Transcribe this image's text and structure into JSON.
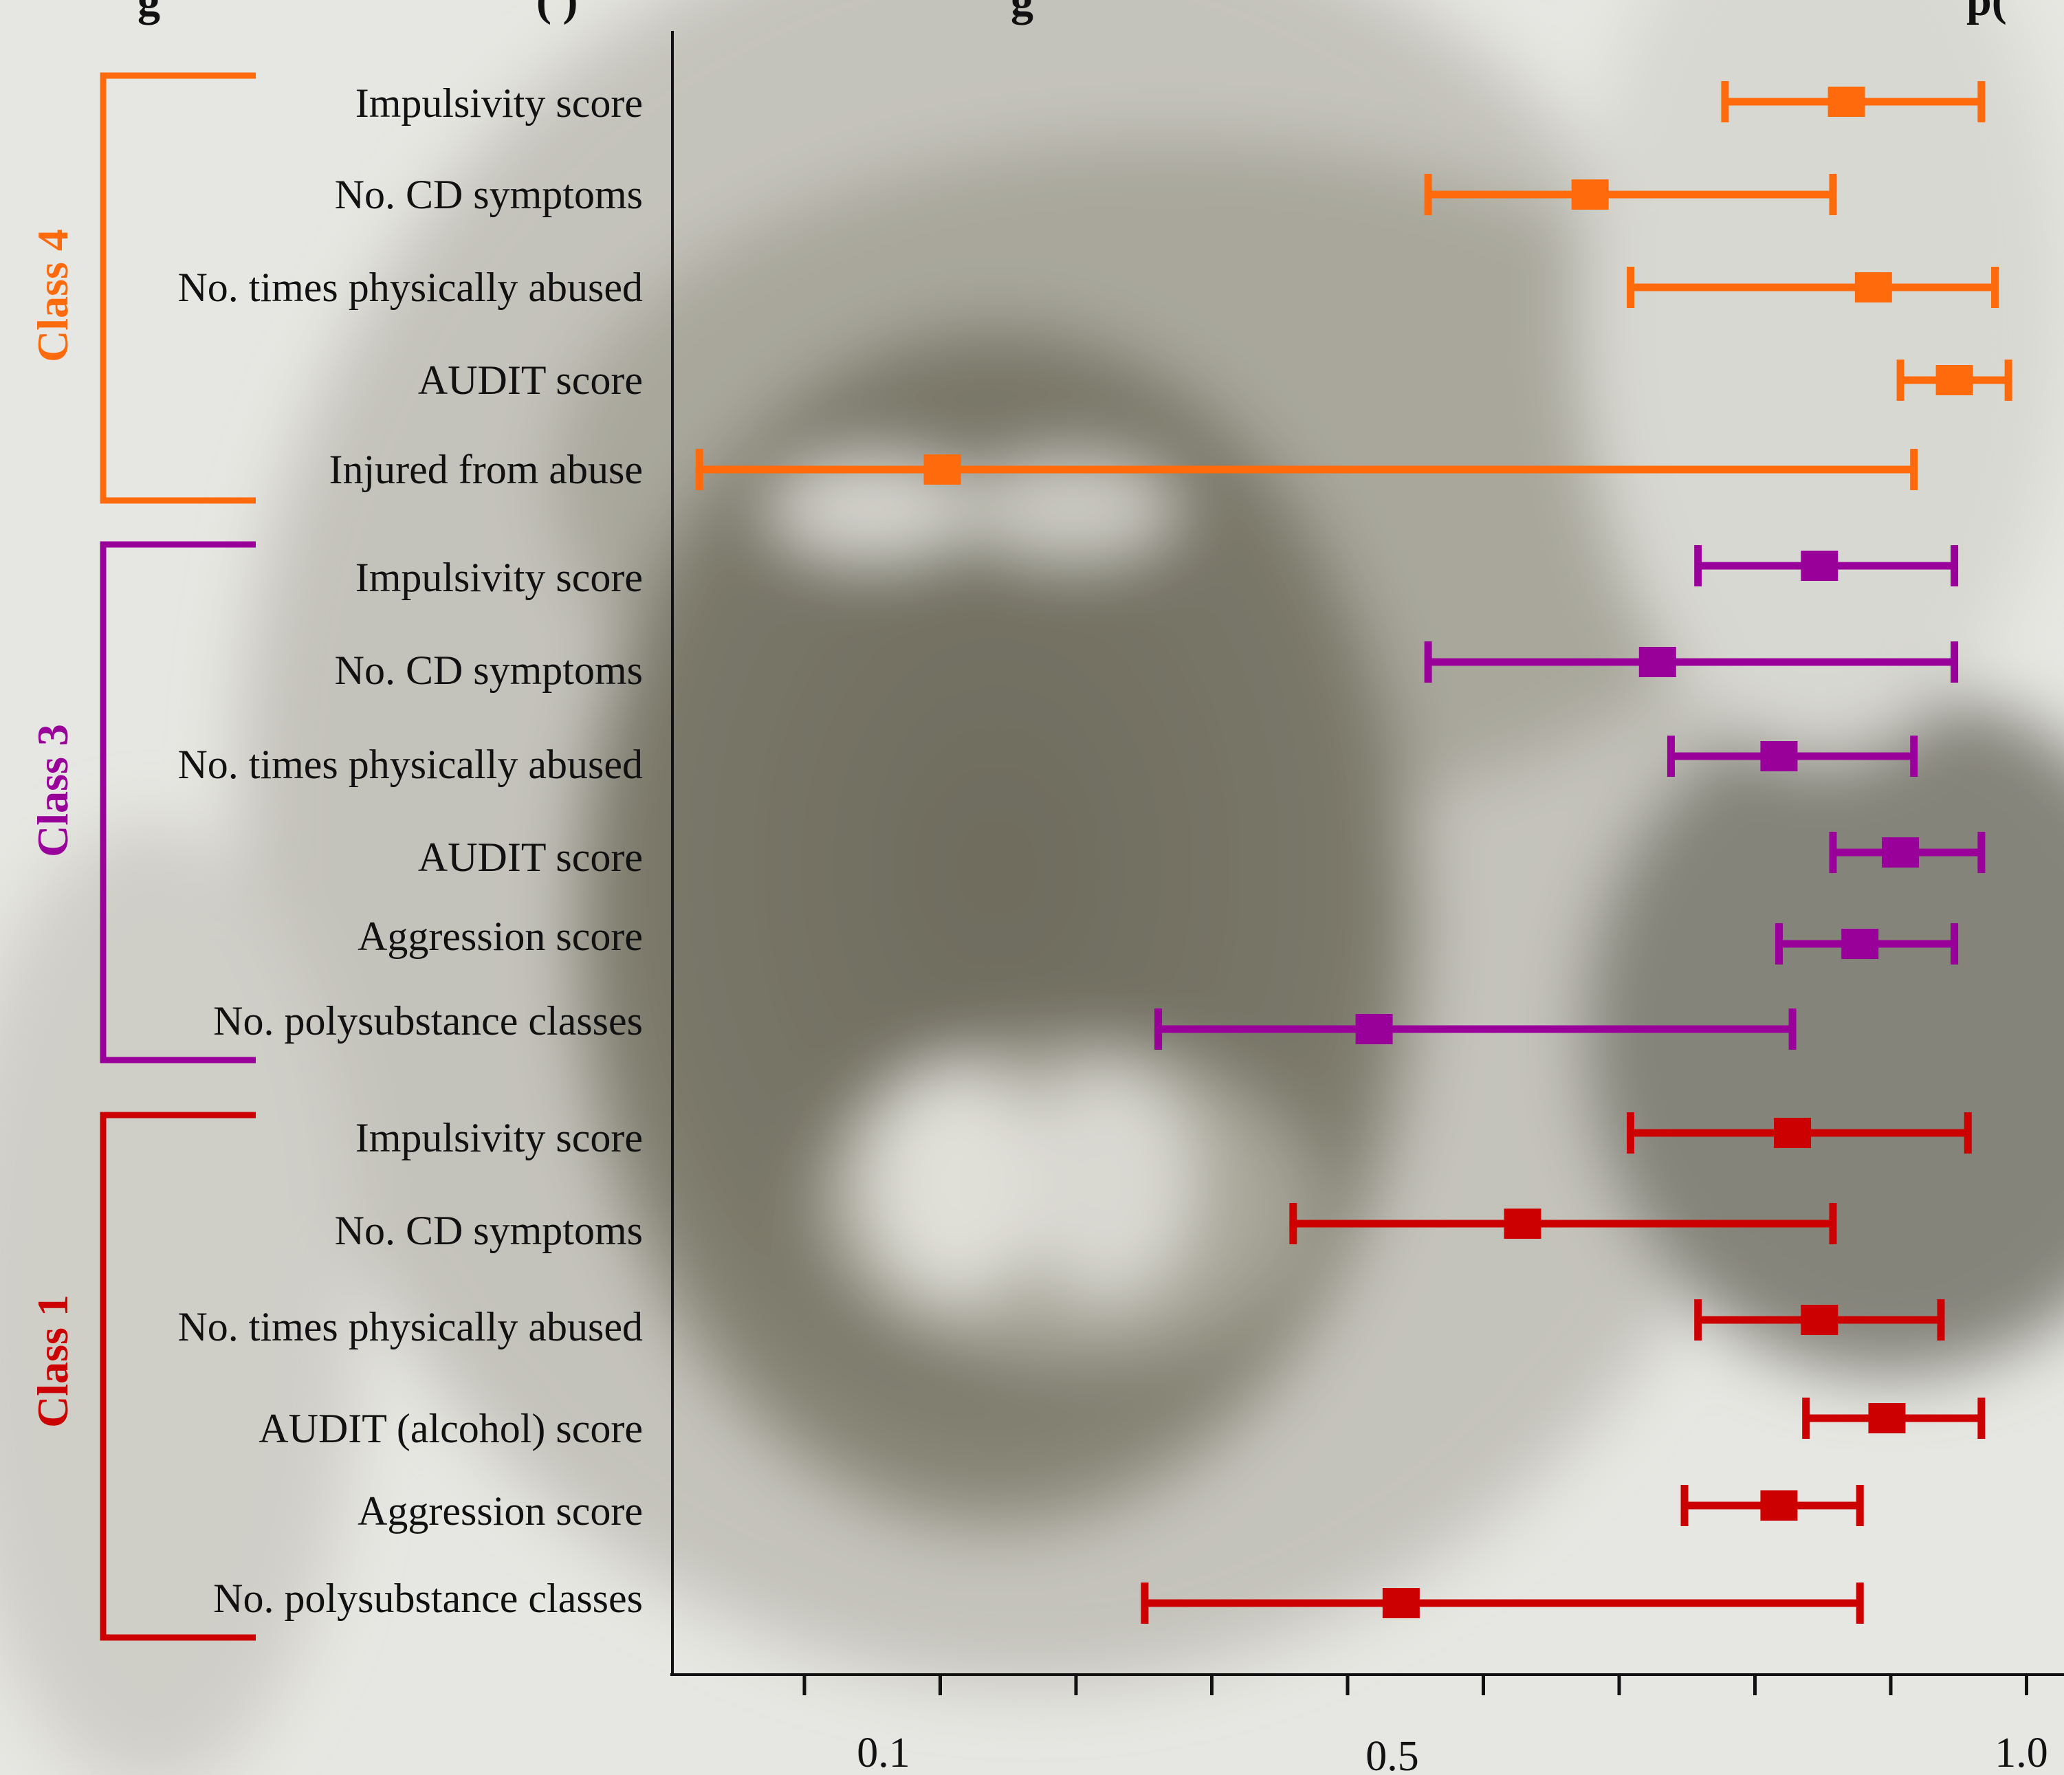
{
  "header_fragments": {
    "left": "g",
    "left_paren": "( )",
    "middle": "g",
    "right": "p("
  },
  "chart_data": {
    "type": "forest",
    "title": "",
    "xlabel": "",
    "ylabel": "",
    "x_ticks": [
      {
        "label": "0.1",
        "value": 0.1
      },
      {
        "label": "0.5",
        "value": 0.5
      },
      {
        "label": "1.0",
        "value": 1.0
      }
    ],
    "xlim": [
      0.0,
      1.02
    ],
    "groups": [
      {
        "name": "Class 4",
        "color": "#ff6a0c",
        "items": [
          {
            "label": "Impulsivity score",
            "estimate": 0.87,
            "low": 0.78,
            "high": 0.97
          },
          {
            "label": "No. CD symptoms",
            "estimate": 0.68,
            "low": 0.56,
            "high": 0.86
          },
          {
            "label": "No. times physically abused",
            "estimate": 0.89,
            "low": 0.71,
            "high": 0.98
          },
          {
            "label": "AUDIT score",
            "estimate": 0.95,
            "low": 0.91,
            "high": 0.99
          },
          {
            "label": "Injured from abuse",
            "estimate": 0.2,
            "low": 0.02,
            "high": 0.92
          }
        ]
      },
      {
        "name": "Class 3",
        "color": "#990099",
        "items": [
          {
            "label": "Impulsivity score",
            "estimate": 0.85,
            "low": 0.76,
            "high": 0.95
          },
          {
            "label": "No. CD symptoms",
            "estimate": 0.73,
            "low": 0.56,
            "high": 0.95
          },
          {
            "label": "No. times physically abused",
            "estimate": 0.82,
            "low": 0.74,
            "high": 0.92
          },
          {
            "label": "AUDIT score",
            "estimate": 0.91,
            "low": 0.86,
            "high": 0.97
          },
          {
            "label": "Aggression score",
            "estimate": 0.88,
            "low": 0.82,
            "high": 0.95
          },
          {
            "label": "No. polysubstance classes",
            "estimate": 0.52,
            "low": 0.36,
            "high": 0.83
          }
        ]
      },
      {
        "name": "Class  1",
        "color": "#cc0000",
        "items": [
          {
            "label": "Impulsivity score",
            "estimate": 0.83,
            "low": 0.71,
            "high": 0.96
          },
          {
            "label": "No. CD symptoms",
            "estimate": 0.63,
            "low": 0.46,
            "high": 0.86
          },
          {
            "label": "No. times physically abused",
            "estimate": 0.85,
            "low": 0.76,
            "high": 0.94
          },
          {
            "label": "AUDIT  (alcohol) score",
            "estimate": 0.9,
            "low": 0.84,
            "high": 0.97
          },
          {
            "label": "Aggression score",
            "estimate": 0.82,
            "low": 0.75,
            "high": 0.88
          },
          {
            "label": "No. polysubstance classes",
            "estimate": 0.54,
            "low": 0.35,
            "high": 0.88
          }
        ]
      }
    ],
    "grid": false,
    "legend": "none"
  }
}
